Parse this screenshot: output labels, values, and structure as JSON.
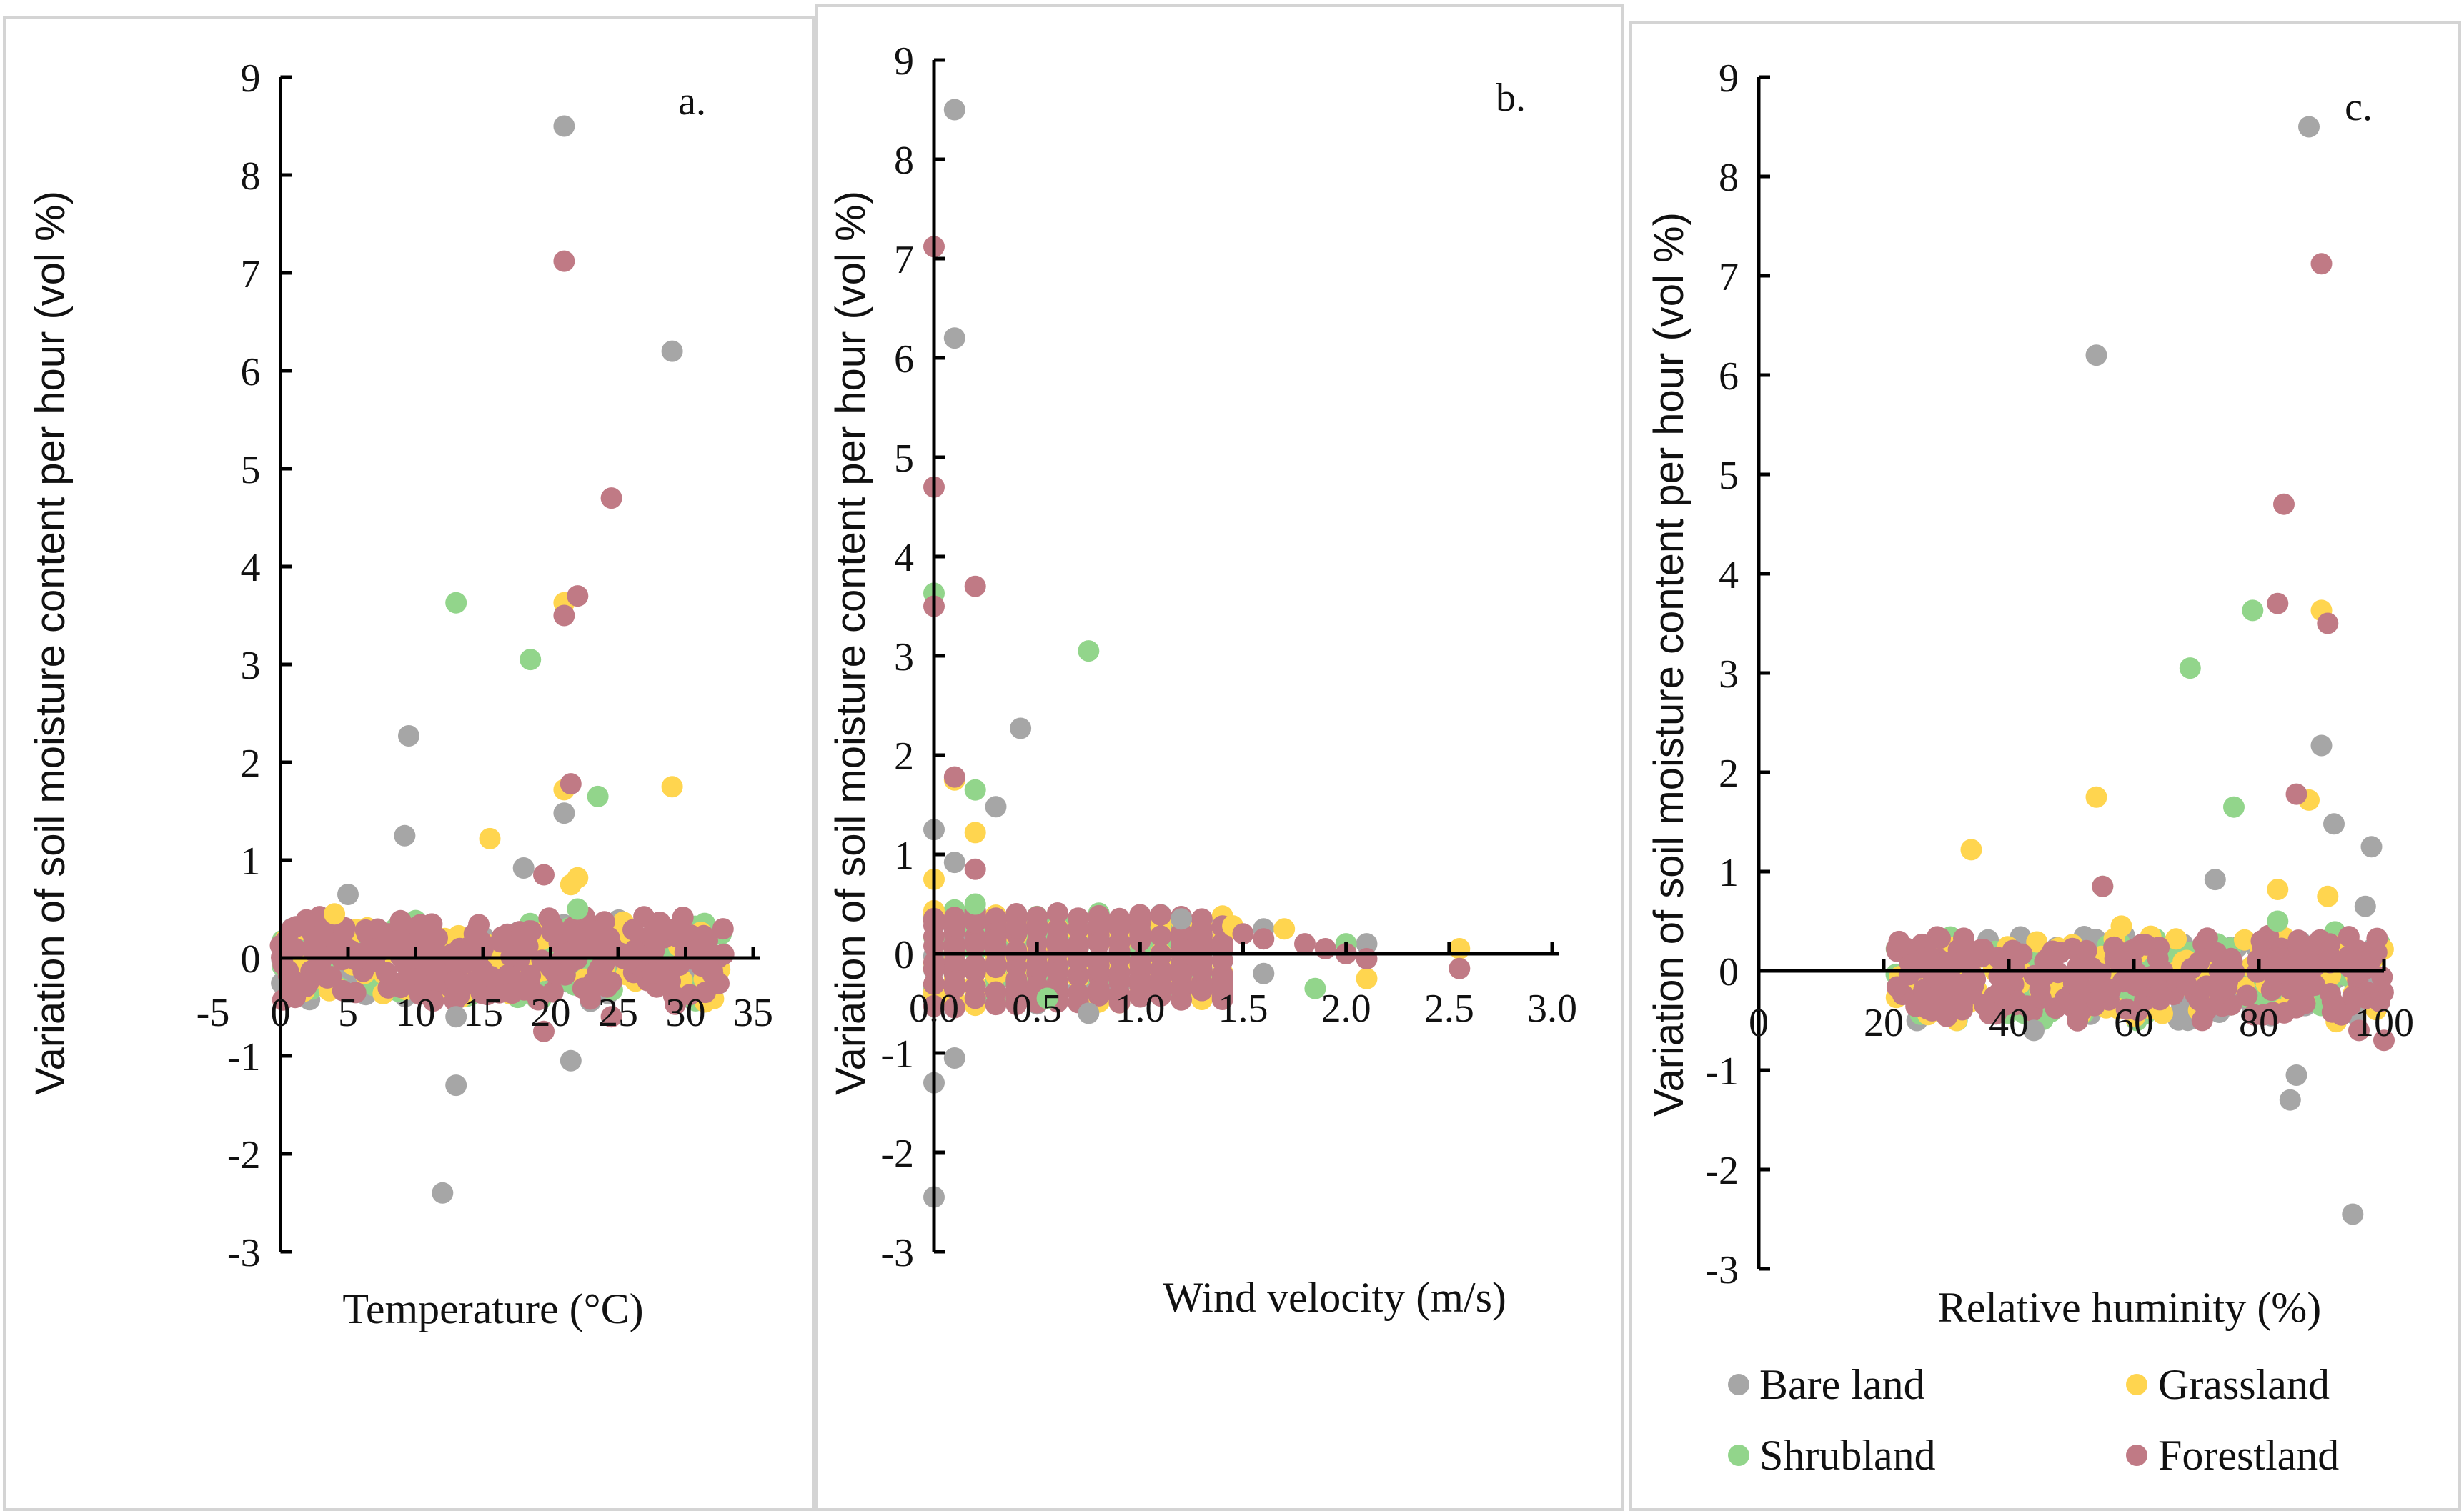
{
  "colors": {
    "Bare land": "#a6a6a6",
    "Grassland": "#ffd54f",
    "Shrubland": "#92d58b",
    "Forestland": "#c07a85",
    "axis": "#000000",
    "border": "#d4d4d4"
  },
  "legend": {
    "items": [
      {
        "key": "Bare land",
        "label": "Bare land"
      },
      {
        "key": "Grassland",
        "label": "Grassland"
      },
      {
        "key": "Shrubland",
        "label": "Shrubland"
      },
      {
        "key": "Forestland",
        "label": "Forestland"
      }
    ]
  },
  "chart_data": [
    {
      "type": "scatter",
      "panel_label": "a.",
      "xlabel": "Temperature (°C)",
      "ylabel": "Variation of soil moisture  content per hour  (vol %)",
      "xlim": [
        -5,
        35
      ],
      "ylim": [
        -3,
        9
      ],
      "xticks": [
        "-5",
        "0",
        "5",
        "10",
        "15",
        "20",
        "25",
        "30",
        "35"
      ],
      "yticks": [
        "-3",
        "-2",
        "-1",
        "0",
        "1",
        "2",
        "3",
        "4",
        "5",
        "6",
        "7",
        "8",
        "9"
      ],
      "cluster": {
        "x_range": [
          0,
          33
        ],
        "y_range": [
          -0.5,
          0.45
        ]
      },
      "series": [
        {
          "name": "Bare land",
          "points": [
            [
              21,
              8.5
            ],
            [
              29,
              6.2
            ],
            [
              9.5,
              2.27
            ],
            [
              9.2,
              1.25
            ],
            [
              21,
              1.48
            ],
            [
              18,
              0.92
            ],
            [
              5,
              0.65
            ],
            [
              13,
              -1.3
            ],
            [
              12,
              -2.4
            ],
            [
              21.5,
              -1.05
            ],
            [
              13,
              -0.6
            ]
          ]
        },
        {
          "name": "Grassland",
          "points": [
            [
              21,
              3.63
            ],
            [
              29,
              1.75
            ],
            [
              21,
              1.72
            ],
            [
              15.5,
              1.22
            ],
            [
              22,
              0.82
            ],
            [
              21.5,
              0.75
            ],
            [
              4,
              0.45
            ]
          ]
        },
        {
          "name": "Shrubland",
          "points": [
            [
              13,
              3.63
            ],
            [
              18.5,
              3.05
            ],
            [
              23.5,
              1.65
            ],
            [
              22,
              0.5
            ]
          ]
        },
        {
          "name": "Forestland",
          "points": [
            [
              21,
              7.12
            ],
            [
              24.5,
              4.7
            ],
            [
              22,
              3.7
            ],
            [
              21,
              3.5
            ],
            [
              21.5,
              1.78
            ],
            [
              19.5,
              0.85
            ],
            [
              19.5,
              -0.75
            ],
            [
              24.5,
              -0.6
            ]
          ]
        }
      ]
    },
    {
      "type": "scatter",
      "panel_label": "b.",
      "xlabel": "Wind velocity (m/s)",
      "ylabel": "Variation of soil moisture content per hour  (vol %)",
      "xlim": [
        0,
        3.0
      ],
      "ylim": [
        -3,
        9
      ],
      "xticks": [
        "0.0",
        "0.5",
        "1.0",
        "1.5",
        "2.0",
        "2.5",
        "3.0"
      ],
      "yticks": [
        "-3",
        "-2",
        "-1",
        "0",
        "1",
        "2",
        "3",
        "4",
        "5",
        "6",
        "7",
        "8",
        "9"
      ],
      "cluster": {
        "x_range": [
          0,
          1.4
        ],
        "y_range": [
          -0.55,
          0.45
        ],
        "step": 0.1
      },
      "series": [
        {
          "name": "Bare land",
          "points": [
            [
              0.1,
              8.5
            ],
            [
              0.1,
              6.2
            ],
            [
              0.42,
              2.27
            ],
            [
              0.3,
              1.48
            ],
            [
              0.0,
              1.25
            ],
            [
              0.1,
              0.92
            ],
            [
              0.0,
              -1.3
            ],
            [
              0.0,
              -2.45
            ],
            [
              0.1,
              -1.05
            ],
            [
              0.75,
              -0.6
            ],
            [
              1.2,
              0.35
            ],
            [
              1.6,
              0.25
            ],
            [
              2.1,
              0.1
            ],
            [
              1.6,
              -0.2
            ]
          ]
        },
        {
          "name": "Grassland",
          "points": [
            [
              0.1,
              1.75
            ],
            [
              0.2,
              1.22
            ],
            [
              0.0,
              0.75
            ],
            [
              1.45,
              0.28
            ],
            [
              1.7,
              0.25
            ],
            [
              2.55,
              0.05
            ],
            [
              2.1,
              -0.25
            ]
          ]
        },
        {
          "name": "Shrubland",
          "points": [
            [
              0.0,
              3.63
            ],
            [
              0.75,
              3.05
            ],
            [
              0.2,
              1.65
            ],
            [
              0.2,
              0.5
            ],
            [
              0.55,
              -0.45
            ],
            [
              1.85,
              -0.35
            ],
            [
              2.0,
              0.1
            ]
          ]
        },
        {
          "name": "Forestland",
          "points": [
            [
              0.0,
              7.12
            ],
            [
              0.0,
              4.7
            ],
            [
              0.2,
              3.7
            ],
            [
              0.0,
              3.5
            ],
            [
              0.1,
              1.78
            ],
            [
              0.2,
              0.85
            ],
            [
              1.5,
              0.2
            ],
            [
              1.6,
              0.15
            ],
            [
              1.8,
              0.1
            ],
            [
              1.9,
              0.05
            ],
            [
              2.0,
              0.0
            ],
            [
              2.1,
              -0.05
            ],
            [
              2.55,
              -0.15
            ]
          ]
        }
      ]
    },
    {
      "type": "scatter",
      "panel_label": "c.",
      "xlabel": "Relative huminity (%)",
      "ylabel": "Variation of soil moisture content per hour  (vol %)",
      "xlim": [
        0,
        100
      ],
      "ylim": [
        -3,
        9
      ],
      "xticks": [
        "0",
        "20",
        "40",
        "60",
        "80",
        "100"
      ],
      "yticks": [
        "-3",
        "-2",
        "-1",
        "0",
        "1",
        "2",
        "3",
        "4",
        "5",
        "6",
        "7",
        "8",
        "9"
      ],
      "cluster": {
        "x_range": [
          22,
          100
        ],
        "y_range": [
          -0.55,
          0.4
        ]
      },
      "series": [
        {
          "name": "Bare land",
          "points": [
            [
              88,
              8.5
            ],
            [
              54,
              6.2
            ],
            [
              90,
              2.27
            ],
            [
              92,
              1.48
            ],
            [
              98,
              1.25
            ],
            [
              73,
              0.92
            ],
            [
              97,
              0.65
            ],
            [
              85,
              -1.3
            ],
            [
              86,
              -1.05
            ],
            [
              95,
              -2.45
            ],
            [
              44,
              -0.6
            ]
          ]
        },
        {
          "name": "Grassland",
          "points": [
            [
              90,
              3.63
            ],
            [
              54,
              1.75
            ],
            [
              88,
              1.72
            ],
            [
              34,
              1.22
            ],
            [
              83,
              0.82
            ],
            [
              91,
              0.75
            ],
            [
              58,
              0.45
            ]
          ]
        },
        {
          "name": "Shrubland",
          "points": [
            [
              79,
              3.63
            ],
            [
              69,
              3.05
            ],
            [
              76,
              1.65
            ],
            [
              83,
              0.5
            ],
            [
              55,
              0.85
            ]
          ]
        },
        {
          "name": "Forestland",
          "points": [
            [
              90,
              7.12
            ],
            [
              84,
              4.7
            ],
            [
              83,
              3.7
            ],
            [
              91,
              3.5
            ],
            [
              86,
              1.78
            ],
            [
              55,
              0.85
            ],
            [
              100,
              -0.7
            ],
            [
              96,
              -0.6
            ]
          ]
        }
      ]
    }
  ]
}
